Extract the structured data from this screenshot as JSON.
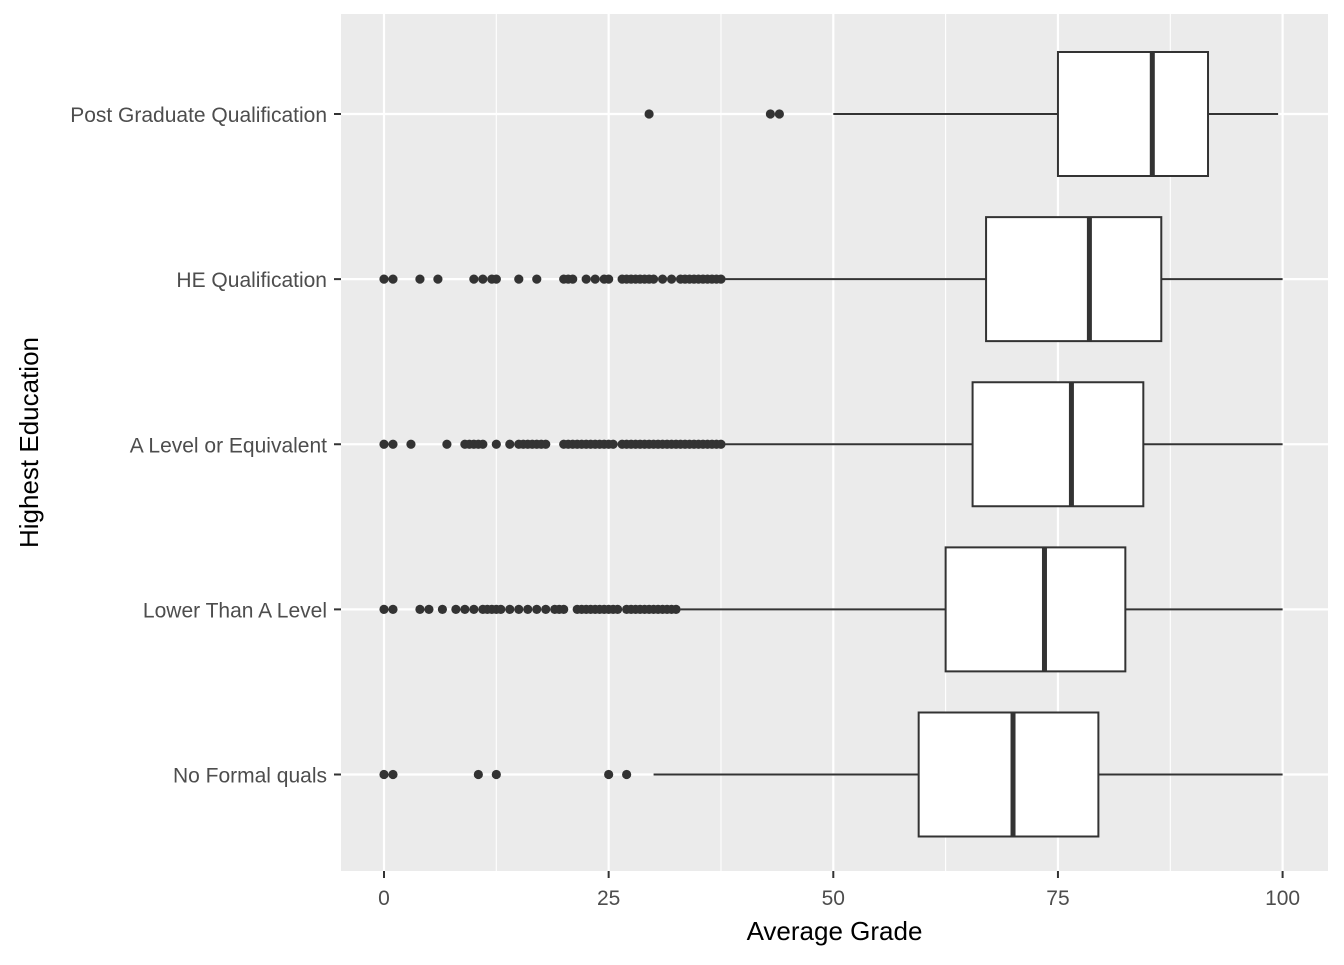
{
  "chart_data": {
    "type": "boxplot",
    "orientation": "horizontal",
    "xlabel": "Average Grade",
    "ylabel": "Highest Education",
    "xlim": [
      -5,
      105
    ],
    "x_ticks": [
      0,
      25,
      50,
      75,
      100
    ],
    "x_tick_labels": [
      "0",
      "25",
      "50",
      "75",
      "100"
    ],
    "grid": true,
    "colors": {
      "panel_background": "#ebebeb",
      "grid_major": "#ffffff",
      "box_fill": "#ffffff",
      "box_line": "#333333",
      "outlier": "#333333",
      "tick_label": "#4d4d4d"
    },
    "categories": [
      "Post Graduate Qualification",
      "HE Qualification",
      "A Level or Equivalent",
      "Lower Than A Level",
      "No Formal quals"
    ],
    "boxes": [
      {
        "category": "Post Graduate Qualification",
        "whisker_low": 50.0,
        "q1": 75.0,
        "median": 85.5,
        "q3": 91.7,
        "whisker_high": 99.5,
        "outliers": [
          29.5,
          43.0,
          44.0
        ]
      },
      {
        "category": "HE Qualification",
        "whisker_low": 38.0,
        "q1": 67.0,
        "median": 78.5,
        "q3": 86.5,
        "whisker_high": 100.0,
        "outliers": [
          0,
          1,
          4,
          6,
          10,
          11,
          12,
          12.5,
          15,
          17,
          20,
          20.5,
          21,
          22.5,
          23.5,
          24.5,
          25,
          26.5,
          27,
          27.5,
          28,
          28.5,
          29,
          29.5,
          30,
          31,
          32,
          33,
          33.5,
          34,
          34.5,
          35,
          35.5,
          36,
          36.5,
          37,
          37.5
        ]
      },
      {
        "category": "A Level or Equivalent",
        "whisker_low": 38.0,
        "q1": 65.5,
        "median": 76.5,
        "q3": 84.5,
        "whisker_high": 100.0,
        "outliers": [
          0,
          1,
          3,
          7,
          9,
          9.5,
          10,
          10.5,
          11,
          12.5,
          14,
          15,
          15.5,
          16,
          16.5,
          17,
          17.5,
          18,
          20,
          20.5,
          21,
          21.5,
          22,
          22.5,
          23,
          23.5,
          24,
          24.5,
          25,
          25.5,
          26.5,
          27,
          27.5,
          28,
          28.5,
          29,
          29.5,
          30,
          30.5,
          31,
          31.5,
          32,
          32.5,
          33,
          33.5,
          34,
          34.5,
          35,
          35.5,
          36,
          36.5,
          37,
          37.5
        ]
      },
      {
        "category": "Lower Than A Level",
        "whisker_low": 33.0,
        "q1": 62.5,
        "median": 73.5,
        "q3": 82.5,
        "whisker_high": 100.0,
        "outliers": [
          0,
          1,
          4,
          5,
          6.5,
          8,
          9,
          10,
          11,
          11.5,
          12,
          12.5,
          13,
          14,
          15,
          16,
          17,
          18,
          19,
          19.5,
          20,
          21.5,
          22,
          22.5,
          23,
          23.5,
          24,
          24.5,
          25,
          25.5,
          26,
          27,
          27.5,
          28,
          28.5,
          29,
          29.5,
          30,
          30.5,
          31,
          31.5,
          32,
          32.5
        ]
      },
      {
        "category": "No Formal quals",
        "whisker_low": 30.0,
        "q1": 59.5,
        "median": 70.0,
        "q3": 79.5,
        "whisker_high": 100.0,
        "outliers": [
          0,
          1,
          10.5,
          12.5,
          25,
          27
        ]
      }
    ]
  }
}
